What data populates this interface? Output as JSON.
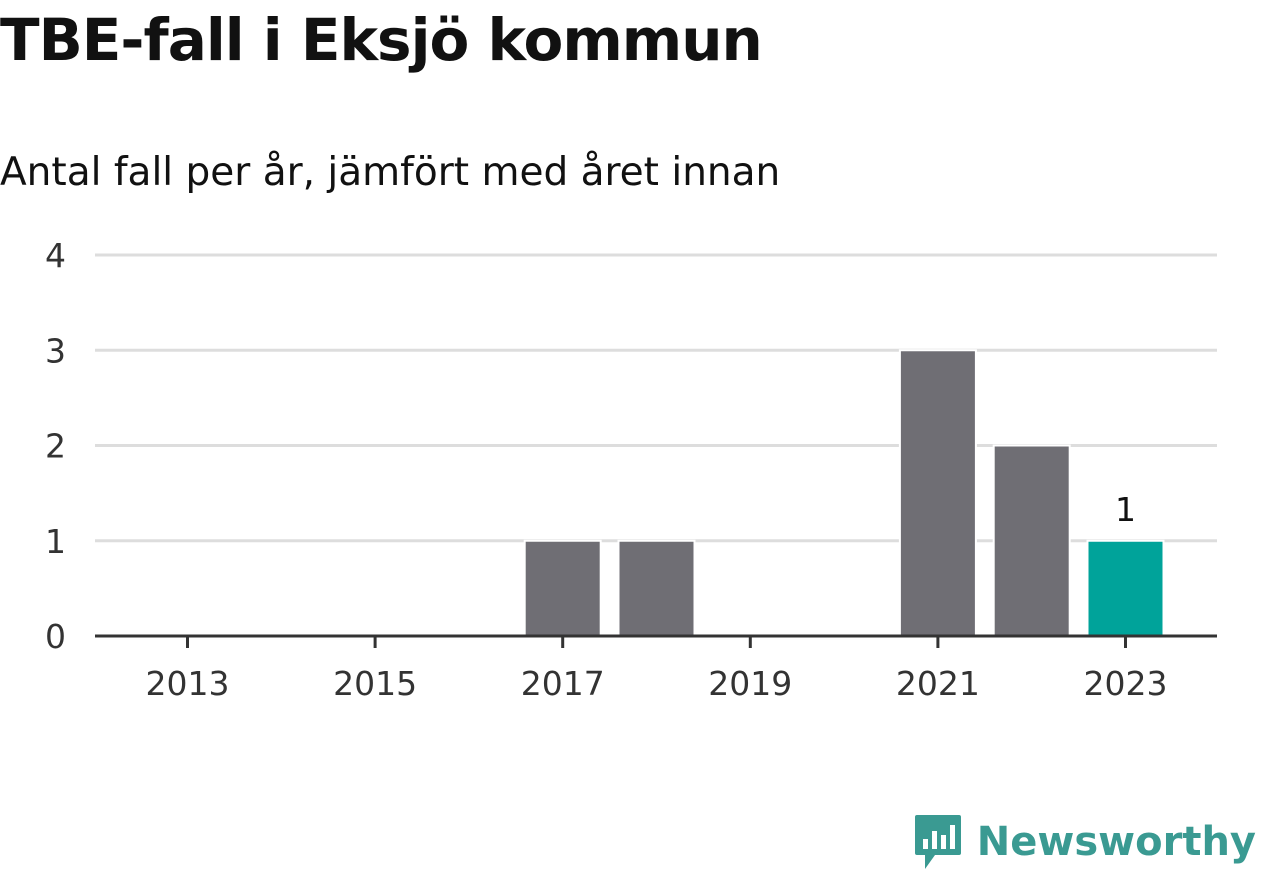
{
  "title": "TBE-fall i Eksjö kommun",
  "subtitle": "Antal fall per år, jämfört med året innan",
  "brand": {
    "name": "Newsworthy",
    "color": "#3a9a92",
    "icon": "newsworthy-chart-bubble-icon"
  },
  "chart_data": {
    "type": "bar",
    "categories": [
      "2013",
      "2014",
      "2015",
      "2016",
      "2017",
      "2018",
      "2019",
      "2020",
      "2021",
      "2022",
      "2023"
    ],
    "values": [
      0,
      0,
      0,
      0,
      1,
      1,
      0,
      0,
      3,
      2,
      1
    ],
    "x_tick_labels": [
      "2013",
      "2015",
      "2017",
      "2019",
      "2021",
      "2023"
    ],
    "y_ticks": [
      0,
      1,
      2,
      3,
      4
    ],
    "ylim": [
      0,
      4
    ],
    "grid": true,
    "highlight": {
      "category": "2023",
      "value_label": "1"
    },
    "colors": {
      "bar": "#6f6e74",
      "highlight": "#00a39a",
      "grid": "#dddddd",
      "axis": "#333333"
    }
  }
}
